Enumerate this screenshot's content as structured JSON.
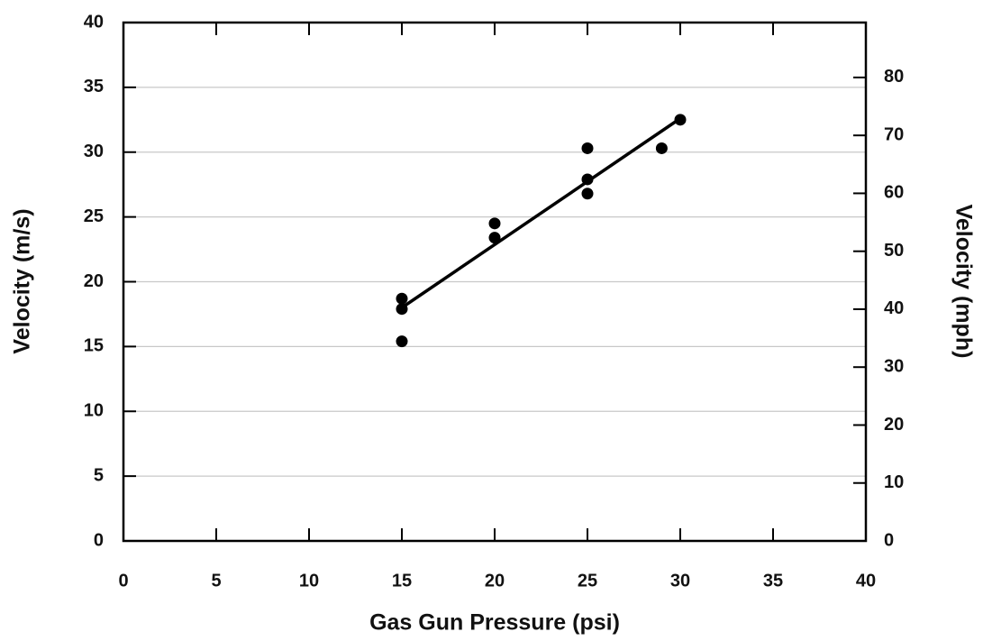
{
  "chart_data": {
    "type": "scatter",
    "xlabel": "Gas Gun Pressure (psi)",
    "ylabel": "Velocity (m/s)",
    "y2label": "Velocity (mph)",
    "xlim": [
      0,
      40
    ],
    "xticks": [
      0,
      5,
      10,
      15,
      20,
      25,
      30,
      35,
      40
    ],
    "ylim": [
      0,
      40
    ],
    "yticks": [
      0,
      5,
      10,
      15,
      20,
      25,
      30,
      35,
      40
    ],
    "y2lim": [
      0,
      89.48
    ],
    "y2ticks": [
      0,
      10,
      20,
      30,
      40,
      50,
      60,
      70,
      80
    ],
    "grid": true,
    "series": [
      {
        "type": "scatter",
        "color": "#000000",
        "x": [
          15,
          15,
          15,
          20,
          20,
          25,
          25,
          25,
          29,
          30
        ],
        "values": [
          18.7,
          17.9,
          15.4,
          24.5,
          23.4,
          30.3,
          27.9,
          26.8,
          30.3,
          32.5
        ]
      },
      {
        "type": "line",
        "color": "#000000",
        "x": [
          15,
          30
        ],
        "values": [
          18.0,
          32.6
        ]
      }
    ]
  }
}
